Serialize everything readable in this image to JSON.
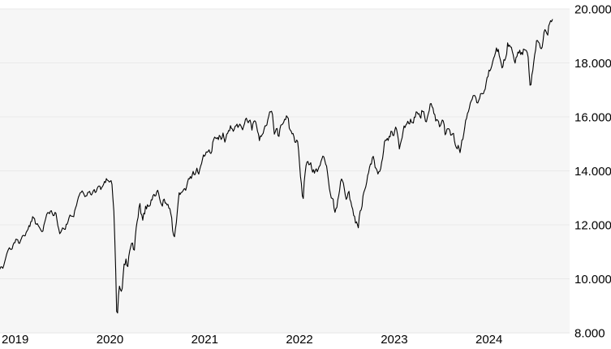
{
  "colors": {
    "page_background": "#ffffff",
    "plot_background": "#f6f6f6",
    "gridline": "#e9e9e9",
    "price_line": "#000000",
    "label_text": "#000000"
  },
  "chart_data": {
    "type": "line",
    "title": "",
    "xlabel": "",
    "ylabel": "",
    "grid": "horizontal",
    "legend_position": "none",
    "ylim": [
      8000,
      20000
    ],
    "x_range_years": [
      2019,
      2025
    ],
    "x_tick_labels": [
      "2019",
      "2020",
      "2021",
      "2022",
      "2023",
      "2024"
    ],
    "x_tick_years": [
      2019,
      2020,
      2021,
      2022,
      2023,
      2024
    ],
    "y_ticks": [
      {
        "value": 8000,
        "label": "8.000"
      },
      {
        "value": 10000,
        "label": "10.000"
      },
      {
        "value": 12000,
        "label": "12.000"
      },
      {
        "value": 14000,
        "label": "14.000"
      },
      {
        "value": 16000,
        "label": "16.000"
      },
      {
        "value": 18000,
        "label": "18.000"
      },
      {
        "value": 20000,
        "label": "20.000"
      }
    ],
    "series": [
      {
        "name": "index-price",
        "color": "#000000",
        "points": [
          [
            2018.98,
            10350
          ],
          [
            2019.0,
            10500
          ],
          [
            2019.02,
            10400
          ],
          [
            2019.05,
            10900
          ],
          [
            2019.08,
            11150
          ],
          [
            2019.1,
            11050
          ],
          [
            2019.13,
            11350
          ],
          [
            2019.16,
            11450
          ],
          [
            2019.18,
            11300
          ],
          [
            2019.21,
            11550
          ],
          [
            2019.23,
            11650
          ],
          [
            2019.25,
            11550
          ],
          [
            2019.27,
            11850
          ],
          [
            2019.3,
            12000
          ],
          [
            2019.32,
            12200
          ],
          [
            2019.34,
            12350
          ],
          [
            2019.36,
            12000
          ],
          [
            2019.38,
            12100
          ],
          [
            2019.4,
            11950
          ],
          [
            2019.43,
            11700
          ],
          [
            2019.45,
            12050
          ],
          [
            2019.47,
            12300
          ],
          [
            2019.5,
            12450
          ],
          [
            2019.52,
            12600
          ],
          [
            2019.55,
            12350
          ],
          [
            2019.57,
            12550
          ],
          [
            2019.59,
            12100
          ],
          [
            2019.61,
            11650
          ],
          [
            2019.63,
            11750
          ],
          [
            2019.65,
            11950
          ],
          [
            2019.67,
            11850
          ],
          [
            2019.7,
            12150
          ],
          [
            2019.72,
            12350
          ],
          [
            2019.75,
            12250
          ],
          [
            2019.77,
            12450
          ],
          [
            2019.8,
            12900
          ],
          [
            2019.82,
            13050
          ],
          [
            2019.85,
            13250
          ],
          [
            2019.87,
            13150
          ],
          [
            2019.9,
            13050
          ],
          [
            2019.92,
            13250
          ],
          [
            2019.95,
            13150
          ],
          [
            2019.98,
            13250
          ],
          [
            2020.0,
            13300
          ],
          [
            2020.03,
            13450
          ],
          [
            2020.05,
            13300
          ],
          [
            2020.08,
            13550
          ],
          [
            2020.1,
            13650
          ],
          [
            2020.12,
            13750
          ],
          [
            2020.14,
            13550
          ],
          [
            2020.16,
            13650
          ],
          [
            2020.18,
            12850
          ],
          [
            2020.2,
            10900
          ],
          [
            2020.21,
            9100
          ],
          [
            2020.22,
            8450
          ],
          [
            2020.23,
            9350
          ],
          [
            2020.25,
            9750
          ],
          [
            2020.27,
            9550
          ],
          [
            2020.29,
            10400
          ],
          [
            2020.31,
            10650
          ],
          [
            2020.33,
            10450
          ],
          [
            2020.35,
            10900
          ],
          [
            2020.37,
            11450
          ],
          [
            2020.4,
            11100
          ],
          [
            2020.42,
            11850
          ],
          [
            2020.44,
            12400
          ],
          [
            2020.46,
            12850
          ],
          [
            2020.48,
            12250
          ],
          [
            2020.5,
            12350
          ],
          [
            2020.52,
            12600
          ],
          [
            2020.54,
            12850
          ],
          [
            2020.56,
            12650
          ],
          [
            2020.58,
            12900
          ],
          [
            2020.6,
            13050
          ],
          [
            2020.63,
            13150
          ],
          [
            2020.65,
            13250
          ],
          [
            2020.67,
            12900
          ],
          [
            2020.69,
            12700
          ],
          [
            2020.71,
            12900
          ],
          [
            2020.73,
            12850
          ],
          [
            2020.75,
            12800
          ],
          [
            2020.77,
            12650
          ],
          [
            2020.79,
            12350
          ],
          [
            2020.81,
            11600
          ],
          [
            2020.83,
            11650
          ],
          [
            2020.85,
            12350
          ],
          [
            2020.87,
            13150
          ],
          [
            2020.9,
            13250
          ],
          [
            2020.92,
            13300
          ],
          [
            2020.94,
            13250
          ],
          [
            2020.96,
            13600
          ],
          [
            2020.98,
            13700
          ],
          [
            2021.0,
            13750
          ],
          [
            2021.02,
            13950
          ],
          [
            2021.04,
            13850
          ],
          [
            2021.06,
            14050
          ],
          [
            2021.08,
            13900
          ],
          [
            2021.1,
            14100
          ],
          [
            2021.13,
            14550
          ],
          [
            2021.16,
            14650
          ],
          [
            2021.18,
            14750
          ],
          [
            2021.21,
            14600
          ],
          [
            2021.23,
            15100
          ],
          [
            2021.26,
            15250
          ],
          [
            2021.28,
            15150
          ],
          [
            2021.3,
            15300
          ],
          [
            2021.32,
            15150
          ],
          [
            2021.34,
            15400
          ],
          [
            2021.36,
            15050
          ],
          [
            2021.38,
            15350
          ],
          [
            2021.4,
            15450
          ],
          [
            2021.42,
            15650
          ],
          [
            2021.45,
            15500
          ],
          [
            2021.47,
            15700
          ],
          [
            2021.5,
            15600
          ],
          [
            2021.52,
            15750
          ],
          [
            2021.54,
            15550
          ],
          [
            2021.56,
            15800
          ],
          [
            2021.58,
            15950
          ],
          [
            2021.6,
            15800
          ],
          [
            2021.62,
            15950
          ],
          [
            2021.64,
            15550
          ],
          [
            2021.66,
            15800
          ],
          [
            2021.68,
            15900
          ],
          [
            2021.7,
            15450
          ],
          [
            2021.72,
            15150
          ],
          [
            2021.75,
            15350
          ],
          [
            2021.77,
            15550
          ],
          [
            2021.8,
            15750
          ],
          [
            2021.82,
            16050
          ],
          [
            2021.84,
            16250
          ],
          [
            2021.86,
            16100
          ],
          [
            2021.88,
            15250
          ],
          [
            2021.9,
            15650
          ],
          [
            2021.92,
            15200
          ],
          [
            2021.94,
            15600
          ],
          [
            2021.96,
            15750
          ],
          [
            2021.98,
            15900
          ],
          [
            2022.0,
            15950
          ],
          [
            2022.02,
            16100
          ],
          [
            2022.04,
            15550
          ],
          [
            2022.06,
            15450
          ],
          [
            2022.08,
            15250
          ],
          [
            2022.1,
            14900
          ],
          [
            2022.12,
            15250
          ],
          [
            2022.14,
            14500
          ],
          [
            2022.16,
            13550
          ],
          [
            2022.18,
            12850
          ],
          [
            2022.2,
            13900
          ],
          [
            2022.22,
            14450
          ],
          [
            2022.24,
            14350
          ],
          [
            2022.26,
            14200
          ],
          [
            2022.28,
            14050
          ],
          [
            2022.3,
            13850
          ],
          [
            2022.32,
            14100
          ],
          [
            2022.34,
            13950
          ],
          [
            2022.36,
            14300
          ],
          [
            2022.38,
            14550
          ],
          [
            2022.4,
            14450
          ],
          [
            2022.42,
            14300
          ],
          [
            2022.44,
            13900
          ],
          [
            2022.46,
            13300
          ],
          [
            2022.48,
            13050
          ],
          [
            2022.5,
            12850
          ],
          [
            2022.52,
            12450
          ],
          [
            2022.54,
            12800
          ],
          [
            2022.56,
            13250
          ],
          [
            2022.58,
            13550
          ],
          [
            2022.6,
            13700
          ],
          [
            2022.62,
            13250
          ],
          [
            2022.64,
            12950
          ],
          [
            2022.66,
            13300
          ],
          [
            2022.68,
            12900
          ],
          [
            2022.7,
            12650
          ],
          [
            2022.72,
            12250
          ],
          [
            2022.74,
            12150
          ],
          [
            2022.76,
            11900
          ],
          [
            2022.78,
            12350
          ],
          [
            2022.8,
            12700
          ],
          [
            2022.82,
            13250
          ],
          [
            2022.84,
            13300
          ],
          [
            2022.86,
            13700
          ],
          [
            2022.88,
            14150
          ],
          [
            2022.9,
            14350
          ],
          [
            2022.92,
            14500
          ],
          [
            2022.94,
            14200
          ],
          [
            2022.96,
            13950
          ],
          [
            2022.98,
            13950
          ],
          [
            2023.0,
            14050
          ],
          [
            2023.02,
            14500
          ],
          [
            2023.04,
            15050
          ],
          [
            2023.06,
            15150
          ],
          [
            2023.08,
            15100
          ],
          [
            2023.1,
            15350
          ],
          [
            2023.12,
            15450
          ],
          [
            2023.14,
            15300
          ],
          [
            2023.16,
            15600
          ],
          [
            2023.18,
            15250
          ],
          [
            2023.2,
            14800
          ],
          [
            2023.22,
            15150
          ],
          [
            2023.24,
            15600
          ],
          [
            2023.26,
            15700
          ],
          [
            2023.28,
            15850
          ],
          [
            2023.3,
            15750
          ],
          [
            2023.32,
            15900
          ],
          [
            2023.34,
            15800
          ],
          [
            2023.36,
            16000
          ],
          [
            2023.38,
            16250
          ],
          [
            2023.4,
            16100
          ],
          [
            2023.42,
            15950
          ],
          [
            2023.44,
            16300
          ],
          [
            2023.46,
            16100
          ],
          [
            2023.48,
            15700
          ],
          [
            2023.5,
            16050
          ],
          [
            2023.52,
            16400
          ],
          [
            2023.54,
            16450
          ],
          [
            2023.56,
            16200
          ],
          [
            2023.58,
            15850
          ],
          [
            2023.6,
            15950
          ],
          [
            2023.62,
            15650
          ],
          [
            2023.64,
            15850
          ],
          [
            2023.66,
            15900
          ],
          [
            2023.68,
            15350
          ],
          [
            2023.7,
            15500
          ],
          [
            2023.72,
            15550
          ],
          [
            2023.74,
            15250
          ],
          [
            2023.76,
            15450
          ],
          [
            2023.78,
            15150
          ],
          [
            2023.8,
            14800
          ],
          [
            2023.82,
            14950
          ],
          [
            2023.84,
            14700
          ],
          [
            2023.86,
            15150
          ],
          [
            2023.88,
            15400
          ],
          [
            2023.9,
            15950
          ],
          [
            2023.92,
            16150
          ],
          [
            2023.94,
            16400
          ],
          [
            2023.96,
            16700
          ],
          [
            2023.98,
            16750
          ],
          [
            2024.0,
            16700
          ],
          [
            2024.02,
            16550
          ],
          [
            2024.04,
            16650
          ],
          [
            2024.06,
            16900
          ],
          [
            2024.08,
            16850
          ],
          [
            2024.1,
            17000
          ],
          [
            2024.12,
            17350
          ],
          [
            2024.14,
            17700
          ],
          [
            2024.16,
            17750
          ],
          [
            2024.18,
            17950
          ],
          [
            2024.2,
            18250
          ],
          [
            2024.22,
            18500
          ],
          [
            2024.24,
            18450
          ],
          [
            2024.26,
            18200
          ],
          [
            2024.28,
            17800
          ],
          [
            2024.3,
            18050
          ],
          [
            2024.32,
            18150
          ],
          [
            2024.34,
            18700
          ],
          [
            2024.36,
            18650
          ],
          [
            2024.38,
            18500
          ],
          [
            2024.4,
            18200
          ],
          [
            2024.42,
            18050
          ],
          [
            2024.44,
            18300
          ],
          [
            2024.46,
            18450
          ],
          [
            2024.48,
            18300
          ],
          [
            2024.5,
            18400
          ],
          [
            2024.52,
            18550
          ],
          [
            2024.54,
            18450
          ],
          [
            2024.56,
            18000
          ],
          [
            2024.58,
            17050
          ],
          [
            2024.6,
            17650
          ],
          [
            2024.62,
            18250
          ],
          [
            2024.64,
            18750
          ],
          [
            2024.66,
            18900
          ],
          [
            2024.68,
            18650
          ],
          [
            2024.7,
            18500
          ],
          [
            2024.72,
            19050
          ],
          [
            2024.74,
            19250
          ],
          [
            2024.76,
            19050
          ],
          [
            2024.78,
            19450
          ],
          [
            2024.8,
            19550
          ],
          [
            2024.82,
            19650
          ]
        ]
      }
    ]
  }
}
